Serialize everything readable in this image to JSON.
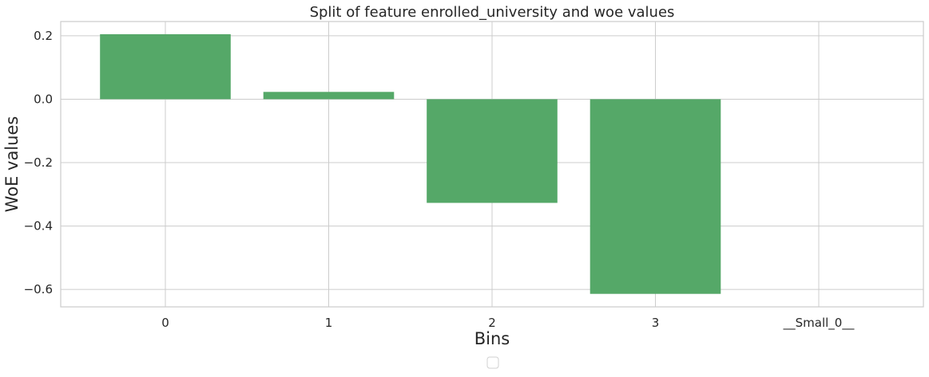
{
  "chart_data": {
    "type": "bar",
    "title": "Split of feature enrolled_university and woe values",
    "xlabel": "Bins",
    "ylabel": "WoE values",
    "categories": [
      "0",
      "1",
      "2",
      "3",
      "__Small_0__"
    ],
    "values": [
      0.205,
      0.023,
      -0.327,
      -0.614,
      0.0
    ],
    "ylim": [
      -0.655,
      0.245
    ],
    "yticks": [
      0.2,
      0.0,
      -0.2,
      -0.4,
      -0.6
    ],
    "ytick_labels": [
      "0.2",
      "0.0",
      "−0.2",
      "−0.4",
      "−0.6"
    ],
    "grid": true,
    "legend": {
      "visible": true,
      "placement": "below-center",
      "entries": []
    },
    "colors": {
      "bar": "#55a868",
      "grid": "#cccccc",
      "text": "#262626",
      "background": "#ffffff"
    }
  }
}
